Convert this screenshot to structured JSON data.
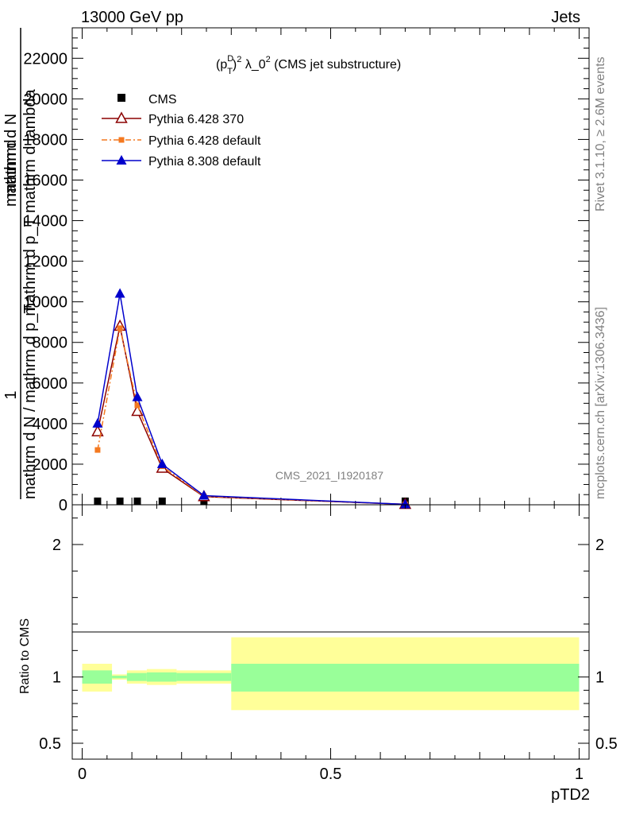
{
  "header": {
    "left": "13000 GeV pp",
    "right": "Jets",
    "side_top": "Rivet 3.1.10, ≥ 2.6M events",
    "side_bottom": "mcplots.cern.ch [arXiv:1306.3436]",
    "watermark": "CMS_2021_I1920187"
  },
  "chart_data": [
    {
      "type": "line",
      "title": "(p_T^D)^2 λ_0^2 (CMS jet substructure)",
      "title_parts": {
        "a": "(p",
        "sup1": "D",
        "sub1": "T",
        "b": ")",
        "sup2": "2",
        "c": " λ_0",
        "sup3": "2",
        "d": " (CMS jet substructure)"
      },
      "ylabel_lines": [
        "1",
        "mathrm d N / mathrm d p_T",
        "mathrm d",
        "mathrm d N",
        "mathrm d p_T mathrm d lambda"
      ],
      "ylim": [
        0,
        23500
      ],
      "xlim": [
        -0.02,
        1.02
      ],
      "yticks": [
        0,
        2000,
        4000,
        6000,
        8000,
        10000,
        12000,
        14000,
        16000,
        18000,
        20000,
        22000
      ],
      "ytick_labels": [
        "0",
        "2000",
        "4000",
        "6000",
        "8000",
        "10000",
        "12000",
        "14000",
        "16000",
        "18000",
        "20000",
        "22000"
      ],
      "x": [
        0.031,
        0.076,
        0.111,
        0.161,
        0.245,
        0.65
      ],
      "series": [
        {
          "name": "CMS",
          "color": "#000000",
          "marker": "square",
          "values": [
            5,
            5,
            5,
            5,
            5,
            5
          ],
          "line": false
        },
        {
          "name": "Pythia 6.428 370",
          "color": "#8b0000",
          "marker": "triangle-open",
          "values": [
            3600,
            8800,
            4600,
            1800,
            400,
            20
          ],
          "line": true
        },
        {
          "name": "Pythia 6.428 default",
          "color": "#f47920",
          "marker": "square-small",
          "values": [
            2700,
            8700,
            4900,
            1900,
            420,
            20
          ],
          "line": true,
          "dashed": true
        },
        {
          "name": "Pythia 8.308 default",
          "color": "#0000cc",
          "marker": "triangle-filled",
          "values": [
            4000,
            10400,
            5300,
            2000,
            450,
            20
          ],
          "line": true
        }
      ]
    },
    {
      "type": "area",
      "ylabel": "Ratio to CMS",
      "xlabel": "pTD2",
      "ylim": [
        0.38,
        2.3
      ],
      "yticks": [
        0.5,
        1,
        2
      ],
      "ytick_labels": [
        "0.5",
        "1",
        "2"
      ],
      "xticks": [
        0,
        0.5,
        1
      ],
      "xtick_labels": [
        "0",
        "0.5",
        "1"
      ],
      "bins": [
        {
          "x0": 0.0,
          "x1": 0.06,
          "inner": [
            0.95,
            1.05
          ],
          "outer": [
            0.89,
            1.1
          ]
        },
        {
          "x0": 0.06,
          "x1": 0.09,
          "inner": [
            0.99,
            1.01
          ],
          "outer": [
            0.98,
            1.02
          ]
        },
        {
          "x0": 0.09,
          "x1": 0.13,
          "inner": [
            0.97,
            1.03
          ],
          "outer": [
            0.95,
            1.05
          ]
        },
        {
          "x0": 0.13,
          "x1": 0.19,
          "inner": [
            0.965,
            1.035
          ],
          "outer": [
            0.94,
            1.06
          ]
        },
        {
          "x0": 0.19,
          "x1": 0.3,
          "inner": [
            0.97,
            1.03
          ],
          "outer": [
            0.95,
            1.05
          ]
        },
        {
          "x0": 0.3,
          "x1": 1.0,
          "inner": [
            0.89,
            1.1
          ],
          "outer": [
            0.75,
            1.3
          ]
        }
      ],
      "colors": {
        "inner": "#99ff99",
        "outer": "#ffff99"
      }
    }
  ]
}
